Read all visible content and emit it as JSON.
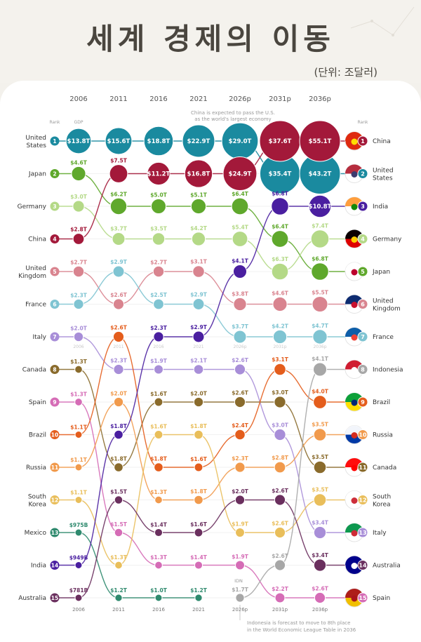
{
  "header": {
    "title": "세계 경제의 이동",
    "unit": "(단위: 조달러)"
  },
  "chart_data": {
    "type": "bump",
    "years": [
      "2006",
      "2011",
      "2016",
      "2021",
      "2026p",
      "2031p",
      "2036p"
    ],
    "rank_label": "Rank",
    "gdp_label": "GDP",
    "annotations": {
      "china_pass": "China is expected to pass the U.S. as the world's largest economy",
      "indonesia": "Indonesia is forecast to move to 8th place in the World Economic League Table in 2036",
      "idn_label": "IDN"
    },
    "countries": [
      {
        "name": "United States",
        "color": "#1a8a9f",
        "ranks": [
          1,
          1,
          1,
          1,
          1,
          2,
          2
        ],
        "values": [
          "$13.8T",
          "$15.6T",
          "$18.8T",
          "$22.9T",
          "$29.0T",
          "$35.4T",
          "$43.2T"
        ],
        "gdp": [
          13.8,
          15.6,
          18.8,
          22.9,
          29.0,
          35.4,
          43.2
        ]
      },
      {
        "name": "Japan",
        "color": "#5fa82c",
        "ranks": [
          2,
          3,
          3,
          3,
          3,
          4,
          5
        ],
        "values": [
          "$4.6T",
          "$6.2T",
          "$5.0T",
          "$5.1T",
          "$6.4T",
          "$6.4T",
          "$6.8T"
        ],
        "gdp": [
          4.6,
          6.2,
          5.0,
          5.1,
          6.4,
          6.4,
          6.8
        ]
      },
      {
        "name": "Germany",
        "color": "#b4d987",
        "ranks": [
          3,
          4,
          4,
          4,
          4,
          5,
          4
        ],
        "values": [
          "$3.0T",
          "$3.7T",
          "$3.5T",
          "$4.2T",
          "$5.4T",
          "$6.3T",
          "$7.4T"
        ],
        "gdp": [
          3.0,
          3.7,
          3.5,
          4.2,
          5.4,
          6.3,
          7.4
        ]
      },
      {
        "name": "China",
        "color": "#a3193a",
        "ranks": [
          4,
          2,
          2,
          2,
          2,
          1,
          1
        ],
        "values": [
          "$2.8T",
          "$7.5T",
          "$11.2T",
          "$16.8T",
          "$24.9T",
          "$37.6T",
          "$55.1T"
        ],
        "gdp": [
          2.8,
          7.5,
          11.2,
          16.8,
          24.9,
          37.6,
          55.1
        ]
      },
      {
        "name": "United Kingdom",
        "color": "#d9848f",
        "ranks": [
          5,
          6,
          5,
          5,
          6,
          6,
          6
        ],
        "values": [
          "$2.7T",
          "$2.6T",
          "$2.7T",
          "$3.1T",
          "$3.8T",
          "$4.6T",
          "$5.5T"
        ],
        "gdp": [
          2.7,
          2.6,
          2.7,
          3.1,
          3.8,
          4.6,
          5.5
        ]
      },
      {
        "name": "France",
        "color": "#7fc4d2",
        "ranks": [
          6,
          5,
          6,
          6,
          7,
          7,
          7
        ],
        "values": [
          "$2.3T",
          "$2.9T",
          "$2.5T",
          "$2.9T",
          "$3.7T",
          "$4.2T",
          "$4.7T"
        ],
        "gdp": [
          2.3,
          2.9,
          2.5,
          2.9,
          3.7,
          4.2,
          4.7
        ]
      },
      {
        "name": "Italy",
        "color": "#a88ed8",
        "ranks": [
          7,
          8,
          8,
          8,
          8,
          10,
          13
        ],
        "values": [
          "$2.0T",
          "$2.3T",
          "$1.9T",
          "$2.1T",
          "$2.6T",
          "$3.0T",
          "$3.4T"
        ],
        "gdp": [
          2.0,
          2.3,
          1.9,
          2.1,
          2.6,
          3.0,
          3.4
        ]
      },
      {
        "name": "Canada",
        "color": "#8a6b2c",
        "ranks": [
          8,
          11,
          9,
          9,
          9,
          9,
          11
        ],
        "values": [
          "$1.3T",
          "$1.8T",
          "$1.6T",
          "$2.0T",
          "$2.6T",
          "$3.0T",
          "$3.5T"
        ],
        "gdp": [
          1.3,
          1.8,
          1.6,
          2.0,
          2.6,
          3.0,
          3.5
        ]
      },
      {
        "name": "Spain",
        "color": "#d56cb6",
        "ranks": [
          9,
          13,
          14,
          14,
          14,
          15,
          15
        ],
        "values": [
          "$1.3T",
          "$1.5T",
          "$1.3T",
          "$1.4T",
          "$1.9T",
          "$2.2T",
          "$2.6T"
        ],
        "gdp": [
          1.3,
          1.5,
          1.3,
          1.4,
          1.9,
          2.2,
          2.6
        ]
      },
      {
        "name": "Brazil",
        "color": "#e45d1c",
        "ranks": [
          10,
          7,
          11,
          11,
          10,
          8,
          9
        ],
        "values": [
          "$1.1T",
          "$2.6T",
          "$1.8T",
          "$1.6T",
          "$2.4T",
          "$3.1T",
          "$4.0T"
        ],
        "gdp": [
          1.1,
          2.6,
          1.8,
          1.6,
          2.4,
          3.1,
          4.0
        ]
      },
      {
        "name": "Russia",
        "color": "#f19a4c",
        "ranks": [
          11,
          9,
          12,
          12,
          11,
          11,
          10
        ],
        "values": [
          "$1.1T",
          "$2.0T",
          "$1.3T",
          "$1.8T",
          "$2.3T",
          "$2.8T",
          "$3.5T"
        ],
        "gdp": [
          1.1,
          2.0,
          1.3,
          1.8,
          2.3,
          2.8,
          3.5
        ]
      },
      {
        "name": "South Korea",
        "color": "#e9be5a",
        "ranks": [
          12,
          14,
          10,
          10,
          13,
          13,
          12
        ],
        "values": [
          "$1.1T",
          "$1.3T",
          "$1.6T",
          "$1.8T",
          "$1.9T",
          "$2.6T",
          "$3.5T"
        ],
        "gdp": [
          1.1,
          1.3,
          1.6,
          1.8,
          1.9,
          2.6,
          3.5
        ]
      },
      {
        "name": "Mexico",
        "color": "#2f8a6e",
        "ranks": [
          13,
          15,
          15,
          15,
          null,
          null,
          null
        ],
        "values": [
          "$975B",
          "$1.2T",
          "$1.0T",
          "$1.2T",
          null,
          null,
          null
        ],
        "gdp": [
          0.975,
          1.2,
          1.0,
          1.2,
          null,
          null,
          null
        ]
      },
      {
        "name": "India",
        "color": "#4a1fa0",
        "ranks": [
          14,
          10,
          7,
          7,
          5,
          3,
          3
        ],
        "values": [
          "$949B",
          "$1.8T",
          "$2.3T",
          "$2.9T",
          "$4.1T",
          "$6.8T",
          "$10.8T"
        ],
        "gdp": [
          0.949,
          1.8,
          2.3,
          2.9,
          4.1,
          6.8,
          10.8
        ]
      },
      {
        "name": "Australia",
        "color": "#6a2f5e",
        "ranks": [
          15,
          12,
          13,
          13,
          12,
          12,
          14
        ],
        "values": [
          "$781B",
          "$1.5T",
          "$1.4T",
          "$1.6T",
          "$2.0T",
          "$2.6T",
          "$3.4T"
        ],
        "gdp": [
          0.781,
          1.5,
          1.4,
          1.6,
          2.0,
          2.6,
          3.4
        ]
      },
      {
        "name": "Indonesia",
        "color": "#a7a7a7",
        "ranks": [
          null,
          null,
          null,
          null,
          15,
          14,
          8
        ],
        "values": [
          null,
          null,
          null,
          null,
          "$1.7T",
          "$2.6T",
          "$4.1T"
        ],
        "gdp": [
          null,
          null,
          null,
          null,
          1.7,
          2.6,
          4.1
        ]
      }
    ],
    "left_labels": [
      "United States",
      "Japan",
      "Germany",
      "China",
      "United Kingdom",
      "France",
      "Italy",
      "Canada",
      "Spain",
      "Brazil",
      "Russia",
      "South Korea",
      "Mexico",
      "India",
      "Australia"
    ],
    "right_labels": [
      "China",
      "United States",
      "India",
      "Germany",
      "Japan",
      "United Kingdom",
      "France",
      "Indonesia",
      "Brazil",
      "Russia",
      "Canada",
      "South Korea",
      "Italy",
      "Australia",
      "Spain"
    ]
  }
}
